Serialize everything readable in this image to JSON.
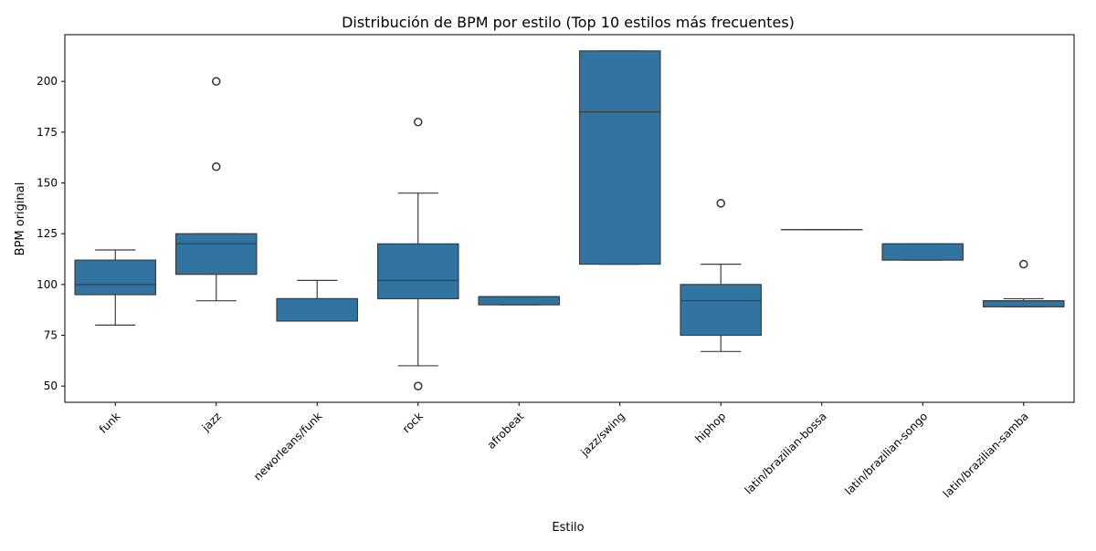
{
  "chart_data": {
    "type": "box",
    "title": "Distribución de BPM por estilo (Top 10 estilos más frecuentes)",
    "xlabel": "Estilo",
    "ylabel": "BPM original",
    "ylim": [
      42,
      223
    ],
    "yticks": [
      50,
      75,
      100,
      125,
      150,
      175,
      200
    ],
    "grid": false,
    "legend": "none",
    "colors": {
      "box_fill": "#3274a1",
      "line": "#3d3d3d",
      "outlier_edge": "#3d3d3d"
    },
    "categories": [
      "funk",
      "jazz",
      "neworleans/funk",
      "rock",
      "afrobeat",
      "jazz/swing",
      "hiphop",
      "latin/brazilian-bossa",
      "latin/brazilian-songo",
      "latin/brazilian-samba"
    ],
    "boxes": [
      {
        "category": "funk",
        "whislo": 80,
        "q1": 95,
        "median": 100,
        "q3": 112,
        "whishi": 117,
        "outliers": []
      },
      {
        "category": "jazz",
        "whislo": 92,
        "q1": 105,
        "median": 120,
        "q3": 125,
        "whishi": 125,
        "outliers": [
          158,
          200
        ]
      },
      {
        "category": "neworleans/funk",
        "whislo": 82,
        "q1": 82,
        "median": 93,
        "q3": 93,
        "whishi": 102,
        "outliers": []
      },
      {
        "category": "rock",
        "whislo": 60,
        "q1": 93,
        "median": 102,
        "q3": 120,
        "whishi": 145,
        "outliers": [
          50,
          180
        ]
      },
      {
        "category": "afrobeat",
        "whislo": 90,
        "q1": 90,
        "median": 94,
        "q3": 94,
        "whishi": 94,
        "outliers": []
      },
      {
        "category": "jazz/swing",
        "whislo": 110,
        "q1": 110,
        "median": 185,
        "q3": 215,
        "whishi": 215,
        "outliers": []
      },
      {
        "category": "hiphop",
        "whislo": 67,
        "q1": 75,
        "median": 92,
        "q3": 100,
        "whishi": 110,
        "outliers": [
          140
        ]
      },
      {
        "category": "latin/brazilian-bossa",
        "whislo": 127,
        "q1": 127,
        "median": 127,
        "q3": 127,
        "whishi": 127,
        "outliers": []
      },
      {
        "category": "latin/brazilian-songo",
        "whislo": 112,
        "q1": 112,
        "median": 120,
        "q3": 120,
        "whishi": 120,
        "outliers": []
      },
      {
        "category": "latin/brazilian-samba",
        "whislo": 89,
        "q1": 89,
        "median": 92,
        "q3": 92,
        "whishi": 93,
        "outliers": [
          110
        ]
      }
    ]
  }
}
